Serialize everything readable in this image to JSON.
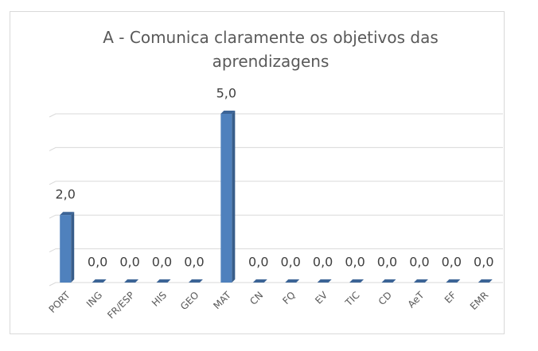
{
  "chart_data": {
    "type": "bar",
    "title": "A - Comunica claramente os objetivos das aprendizagens",
    "categories": [
      "PORT",
      "ING",
      "FR/ESP",
      "HIS",
      "GEO",
      "MAT",
      "CN",
      "FQ",
      "EV",
      "TIC",
      "CD",
      "AeT",
      "EF",
      "EMR"
    ],
    "values": [
      2,
      0,
      0,
      0,
      0,
      5,
      0,
      0,
      0,
      0,
      0,
      0,
      0,
      0
    ],
    "value_labels": [
      "2,0",
      "0,0",
      "0,0",
      "0,0",
      "0,0",
      "5,0",
      "0,0",
      "0,0",
      "0,0",
      "0,0",
      "0,0",
      "0,0",
      "0,0",
      "0,0"
    ],
    "color": "#4f81bd",
    "ylim": [
      0,
      5
    ],
    "yticks": [
      0,
      1,
      2,
      3,
      4,
      5
    ],
    "grid": true
  }
}
